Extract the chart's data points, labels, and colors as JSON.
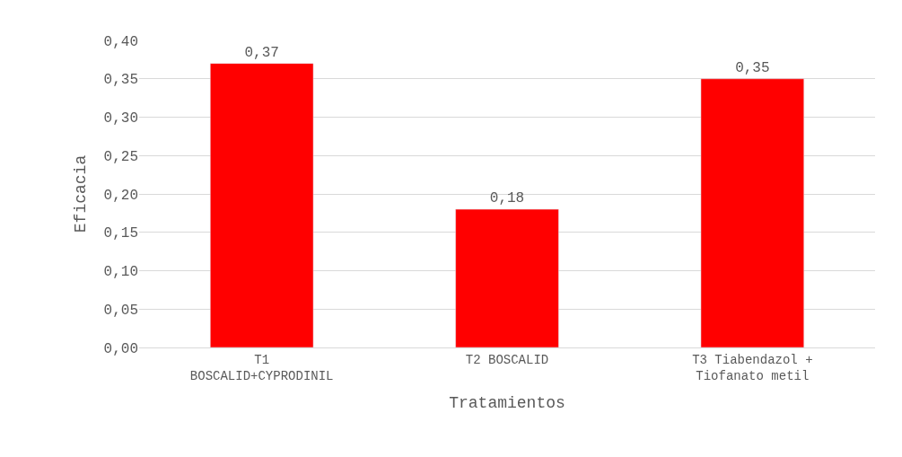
{
  "chart_data": {
    "type": "bar",
    "categories": [
      "T1\nBOSCALID+CYPRODINIL",
      "T2 BOSCALID",
      "T3 Tiabendazol +\nTiofanato metil"
    ],
    "values": [
      0.37,
      0.18,
      0.35
    ],
    "value_labels": [
      "0,37",
      "0,18",
      "0,35"
    ],
    "color": "#ff0000",
    "xlabel": "Tratamientos",
    "ylabel": "Eficacia",
    "ylim": [
      0,
      0.4
    ],
    "yticks": [
      {
        "value": 0,
        "label": "0,00"
      },
      {
        "value": 0.05,
        "label": "0,05"
      },
      {
        "value": 0.1,
        "label": "0,10"
      },
      {
        "value": 0.15,
        "label": "0,15"
      },
      {
        "value": 0.2,
        "label": "0,20"
      },
      {
        "value": 0.25,
        "label": "0,25"
      },
      {
        "value": 0.3,
        "label": "0,30"
      },
      {
        "value": 0.35,
        "label": "0,35"
      },
      {
        "value": 0.4,
        "label": "0,40"
      }
    ],
    "grid": "y",
    "legend": false
  }
}
